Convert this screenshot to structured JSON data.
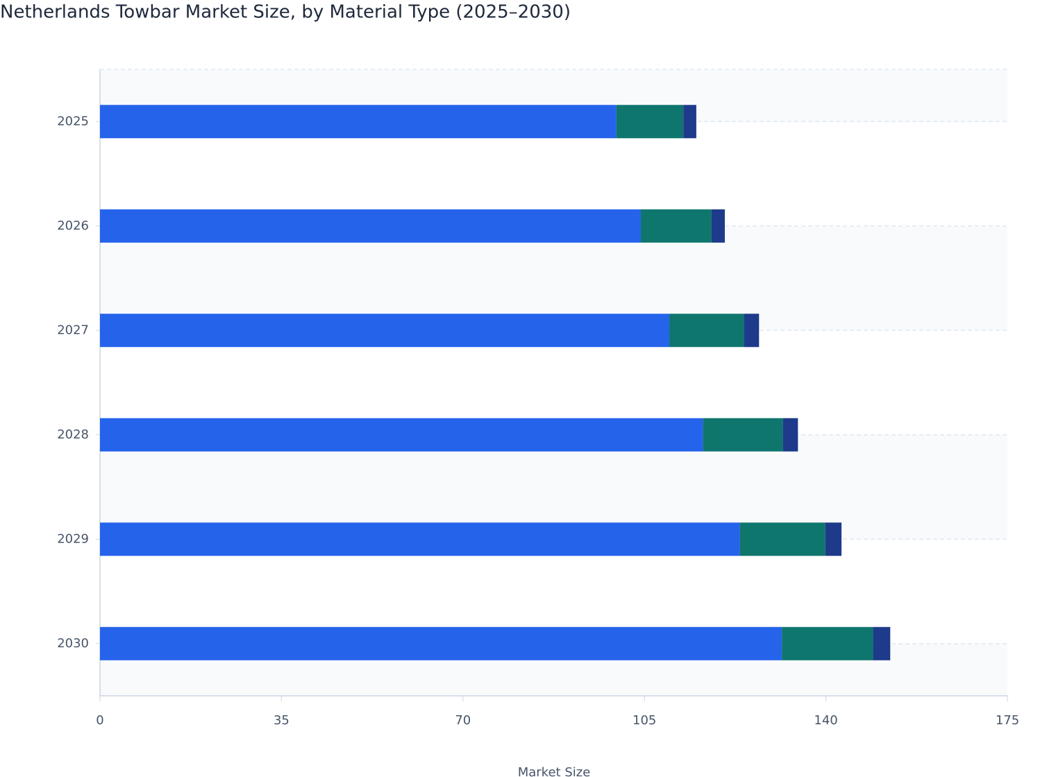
{
  "chart_data": {
    "type": "stacked-bar-horizontal",
    "title": "Netherlands Towbar Market Size, by Material Type (2025–2030)",
    "x_label": "Market Size",
    "categories": [
      "2025",
      "2026",
      "2027",
      "2028",
      "2029",
      "2030"
    ],
    "series": [
      {
        "color": "#2563eb",
        "values": [
          99.6,
          104.3,
          109.8,
          116.3,
          123.4,
          131.5
        ]
      },
      {
        "color": "#0f766e",
        "values": [
          12.9,
          13.65,
          14.4,
          15.4,
          16.5,
          17.6
        ]
      },
      {
        "color": "#1e3a8a",
        "values": [
          2.5,
          2.55,
          2.9,
          2.9,
          3.1,
          3.3
        ]
      }
    ],
    "xlim": [
      0,
      175
    ],
    "xticks": [
      0,
      35,
      70,
      105,
      140,
      175
    ]
  }
}
